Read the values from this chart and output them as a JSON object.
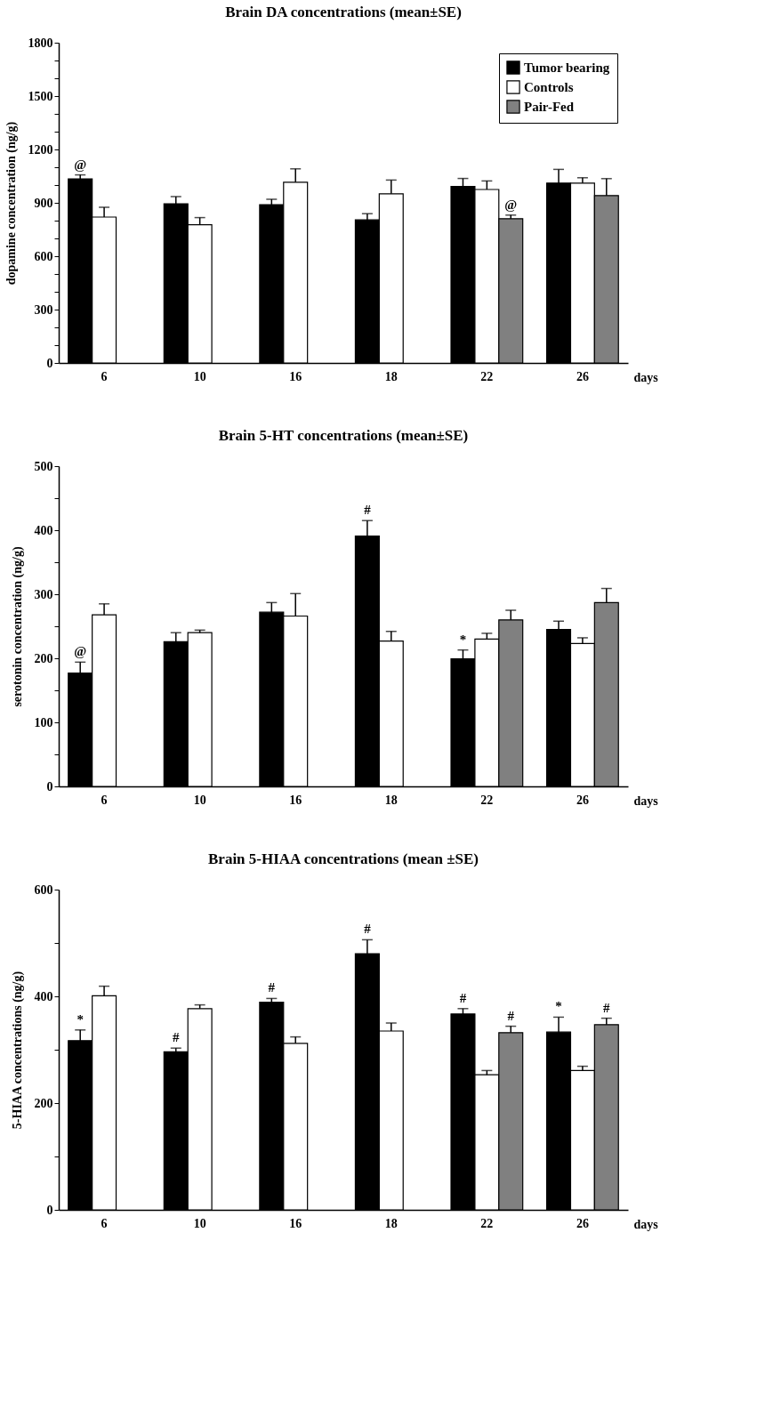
{
  "chart_data": [
    {
      "type": "bar",
      "title": "Brain DA concentrations (mean±SE)",
      "ylabel": "dopamine concentration (ng/g)",
      "xlabel": "days",
      "categories": [
        "6",
        "10",
        "16",
        "18",
        "22",
        "26"
      ],
      "ylim": [
        0,
        1800
      ],
      "yticks": [
        0,
        {
          "value": 100,
          "label": null
        },
        {
          "value": 200,
          "label": null
        },
        300,
        {
          "value": 400,
          "label": null
        },
        {
          "value": 500,
          "label": null
        },
        600,
        {
          "value": 700,
          "label": null
        },
        {
          "value": 800,
          "label": null
        },
        900,
        {
          "value": 1000,
          "label": null
        },
        {
          "value": 1100,
          "label": null
        },
        1200,
        {
          "value": 1300,
          "label": null
        },
        {
          "value": 1400,
          "label": null
        },
        1500,
        {
          "value": 1600,
          "label": null
        },
        {
          "value": 1700,
          "label": null
        },
        1800
      ],
      "grid": false,
      "legend": "top right",
      "series": [
        {
          "name": "Tumor bearing",
          "color": "#000000",
          "values": [
            1035,
            895,
            890,
            804,
            992,
            1011
          ],
          "errors": [
            22,
            40,
            30,
            35,
            45,
            77
          ],
          "value_labels": [
            "@",
            null,
            null,
            null,
            null,
            null
          ]
        },
        {
          "name": "Controls",
          "color": "#ffffff",
          "values": [
            820,
            777,
            1016,
            951,
            975,
            1011
          ],
          "errors": [
            55,
            40,
            75,
            77,
            48,
            30
          ]
        },
        {
          "name": "Pair-Fed",
          "color": "#808080",
          "values": [
            null,
            null,
            null,
            null,
            811,
            941
          ],
          "errors": [
            null,
            null,
            null,
            null,
            20,
            95
          ],
          "value_labels": [
            null,
            null,
            null,
            null,
            "@",
            null
          ]
        }
      ]
    },
    {
      "type": "bar",
      "title": "Brain 5-HT concentrations (mean±SE)",
      "ylabel": "serotonin concentration (ng/g)",
      "xlabel": "days",
      "categories": [
        "6",
        "10",
        "16",
        "18",
        "22",
        "26"
      ],
      "ylim": [
        0,
        500
      ],
      "yticks": [
        0,
        {
          "value": 50,
          "label": null
        },
        100,
        {
          "value": 150,
          "label": null
        },
        200,
        {
          "value": 250,
          "label": null
        },
        300,
        {
          "value": 350,
          "label": null
        },
        400,
        {
          "value": 450,
          "label": null
        },
        500
      ],
      "grid": false,
      "series": [
        {
          "color": "#000000",
          "values": [
            177,
            226,
            272,
            391,
            199,
            245
          ],
          "errors": [
            17,
            14,
            15,
            24,
            14,
            13
          ],
          "value_labels": [
            "@",
            null,
            null,
            "#",
            "*",
            null
          ]
        },
        {
          "color": "#ffffff",
          "values": [
            268,
            240,
            266,
            227,
            230,
            223
          ],
          "errors": [
            17,
            4,
            35,
            15,
            9,
            9
          ]
        },
        {
          "color": "#808080",
          "values": [
            null,
            null,
            null,
            null,
            260,
            287
          ],
          "errors": [
            null,
            null,
            null,
            null,
            15,
            22
          ]
        }
      ]
    },
    {
      "type": "bar",
      "title": "Brain 5-HIAA concentrations (mean ±SE)",
      "ylabel": "5-HIAA concentrations (ng/g)",
      "xlabel": "days",
      "categories": [
        "6",
        "10",
        "16",
        "18",
        "22",
        "26"
      ],
      "ylim": [
        0,
        600
      ],
      "yticks": [
        0,
        {
          "value": 100,
          "label": null
        },
        200,
        {
          "value": 300,
          "label": null
        },
        400,
        {
          "value": 500,
          "label": null
        },
        600
      ],
      "grid": false,
      "series": [
        {
          "color": "#000000",
          "values": [
            317,
            296,
            389,
            480,
            367,
            333
          ],
          "errors": [
            20,
            7,
            7,
            26,
            10,
            28
          ],
          "value_labels": [
            "*",
            "#",
            "#",
            "#",
            "#",
            "*"
          ]
        },
        {
          "color": "#ffffff",
          "values": [
            401,
            377,
            312,
            335,
            253,
            261
          ],
          "errors": [
            18,
            7,
            12,
            15,
            8,
            8
          ]
        },
        {
          "color": "#808080",
          "values": [
            null,
            null,
            null,
            null,
            332,
            347
          ],
          "errors": [
            null,
            null,
            null,
            null,
            12,
            12
          ],
          "value_labels": [
            null,
            null,
            null,
            null,
            "#",
            "#"
          ]
        }
      ]
    }
  ]
}
